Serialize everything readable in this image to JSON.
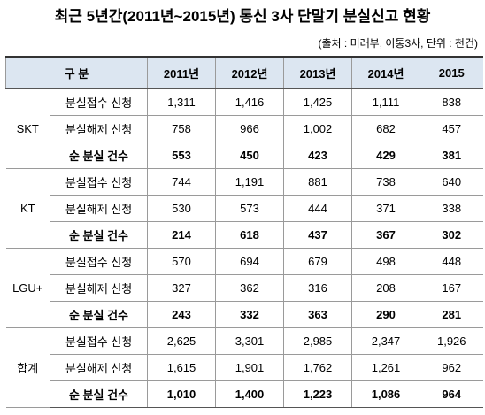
{
  "title": "최근 5년간(2011년~2015년) 통신 3사 단말기 분실신고 현황",
  "source": "(출처 : 미래부, 이통3사, 단위 : 천건)",
  "table": {
    "header": [
      "구 분",
      "2011년",
      "2012년",
      "2013년",
      "2014년",
      "2015"
    ],
    "groups": [
      {
        "name": "SKT",
        "rows": [
          {
            "label": "분실접수 신청",
            "values": [
              "1,311",
              "1,416",
              "1,425",
              "1,111",
              "838"
            ]
          },
          {
            "label": "분실해제 신청",
            "values": [
              "758",
              "966",
              "1,002",
              "682",
              "457"
            ]
          },
          {
            "label": "순 분실 건수",
            "values": [
              "553",
              "450",
              "423",
              "429",
              "381"
            ]
          }
        ]
      },
      {
        "name": "KT",
        "rows": [
          {
            "label": "분실접수 신청",
            "values": [
              "744",
              "1,191",
              "881",
              "738",
              "640"
            ]
          },
          {
            "label": "분실해제 신청",
            "values": [
              "530",
              "573",
              "444",
              "371",
              "338"
            ]
          },
          {
            "label": "순 분실 건수",
            "values": [
              "214",
              "618",
              "437",
              "367",
              "302"
            ]
          }
        ]
      },
      {
        "name": "LGU+",
        "rows": [
          {
            "label": "분실접수 신청",
            "values": [
              "570",
              "694",
              "679",
              "498",
              "448"
            ]
          },
          {
            "label": "분실해제 신청",
            "values": [
              "327",
              "362",
              "316",
              "208",
              "167"
            ]
          },
          {
            "label": "순 분실 건수",
            "values": [
              "243",
              "332",
              "363",
              "290",
              "281"
            ]
          }
        ]
      },
      {
        "name": "합계",
        "rows": [
          {
            "label": "분실접수 신청",
            "values": [
              "2,625",
              "3,301",
              "2,985",
              "2,347",
              "1,926"
            ]
          },
          {
            "label": "분실해제 신청",
            "values": [
              "1,615",
              "1,901",
              "1,762",
              "1,261",
              "962"
            ]
          },
          {
            "label": "순 분실 건수",
            "values": [
              "1,010",
              "1,400",
              "1,223",
              "1,086",
              "964"
            ]
          }
        ]
      }
    ]
  }
}
